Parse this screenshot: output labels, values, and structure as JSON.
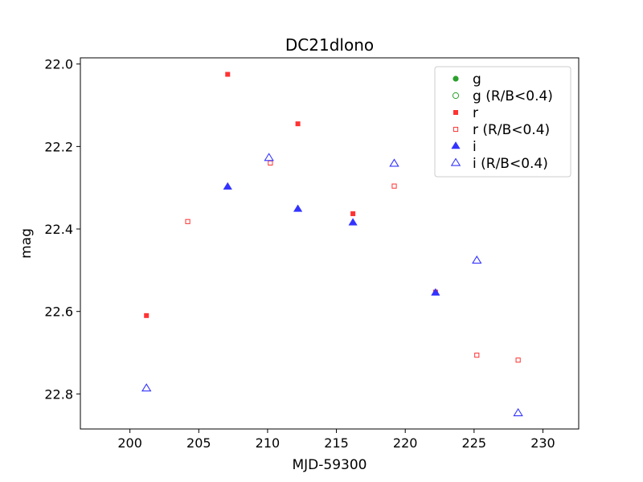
{
  "chart_data": {
    "type": "scatter",
    "title": "DC21dlono",
    "xlabel": "MJD-59300",
    "ylabel": "mag",
    "xlim": [
      196.4,
      232.6
    ],
    "ylim": [
      22.885,
      21.985
    ],
    "y_inverted": true,
    "x_ticks": [
      200,
      205,
      210,
      215,
      220,
      225,
      230
    ],
    "y_ticks": [
      22.0,
      22.2,
      22.4,
      22.6,
      22.8
    ],
    "y_tick_labels": [
      "22.0",
      "22.2",
      "22.4",
      "22.6",
      "22.8"
    ],
    "grid": false,
    "legend_position": "top-right",
    "series": [
      {
        "name": "g",
        "marker": "circle",
        "filled": true,
        "color": "#2ca02c",
        "points": []
      },
      {
        "name": "g (R/B<0.4)",
        "marker": "circle",
        "filled": false,
        "color": "#2ca02c",
        "points": []
      },
      {
        "name": "r",
        "marker": "square",
        "filled": true,
        "color": "#ff3333",
        "points": [
          [
            201.2,
            22.61
          ],
          [
            207.1,
            22.025
          ],
          [
            212.2,
            22.145
          ],
          [
            216.2,
            22.363
          ],
          [
            222.2,
            22.553
          ]
        ]
      },
      {
        "name": "r (R/B<0.4)",
        "marker": "square",
        "filled": false,
        "color": "#ff3333",
        "points": [
          [
            204.2,
            22.382
          ],
          [
            210.2,
            22.24
          ],
          [
            219.2,
            22.296
          ],
          [
            225.2,
            22.706
          ],
          [
            228.2,
            22.718
          ]
        ]
      },
      {
        "name": "i",
        "marker": "triangle",
        "filled": true,
        "color": "#3333ff",
        "points": [
          [
            207.1,
            22.298
          ],
          [
            212.2,
            22.352
          ],
          [
            216.2,
            22.385
          ],
          [
            222.2,
            22.555
          ]
        ]
      },
      {
        "name": "i (R/B<0.4)",
        "marker": "triangle",
        "filled": false,
        "color": "#3333ff",
        "points": [
          [
            201.2,
            22.787
          ],
          [
            210.1,
            22.228
          ],
          [
            219.2,
            22.242
          ],
          [
            225.2,
            22.477
          ],
          [
            228.2,
            22.847
          ]
        ]
      }
    ]
  }
}
